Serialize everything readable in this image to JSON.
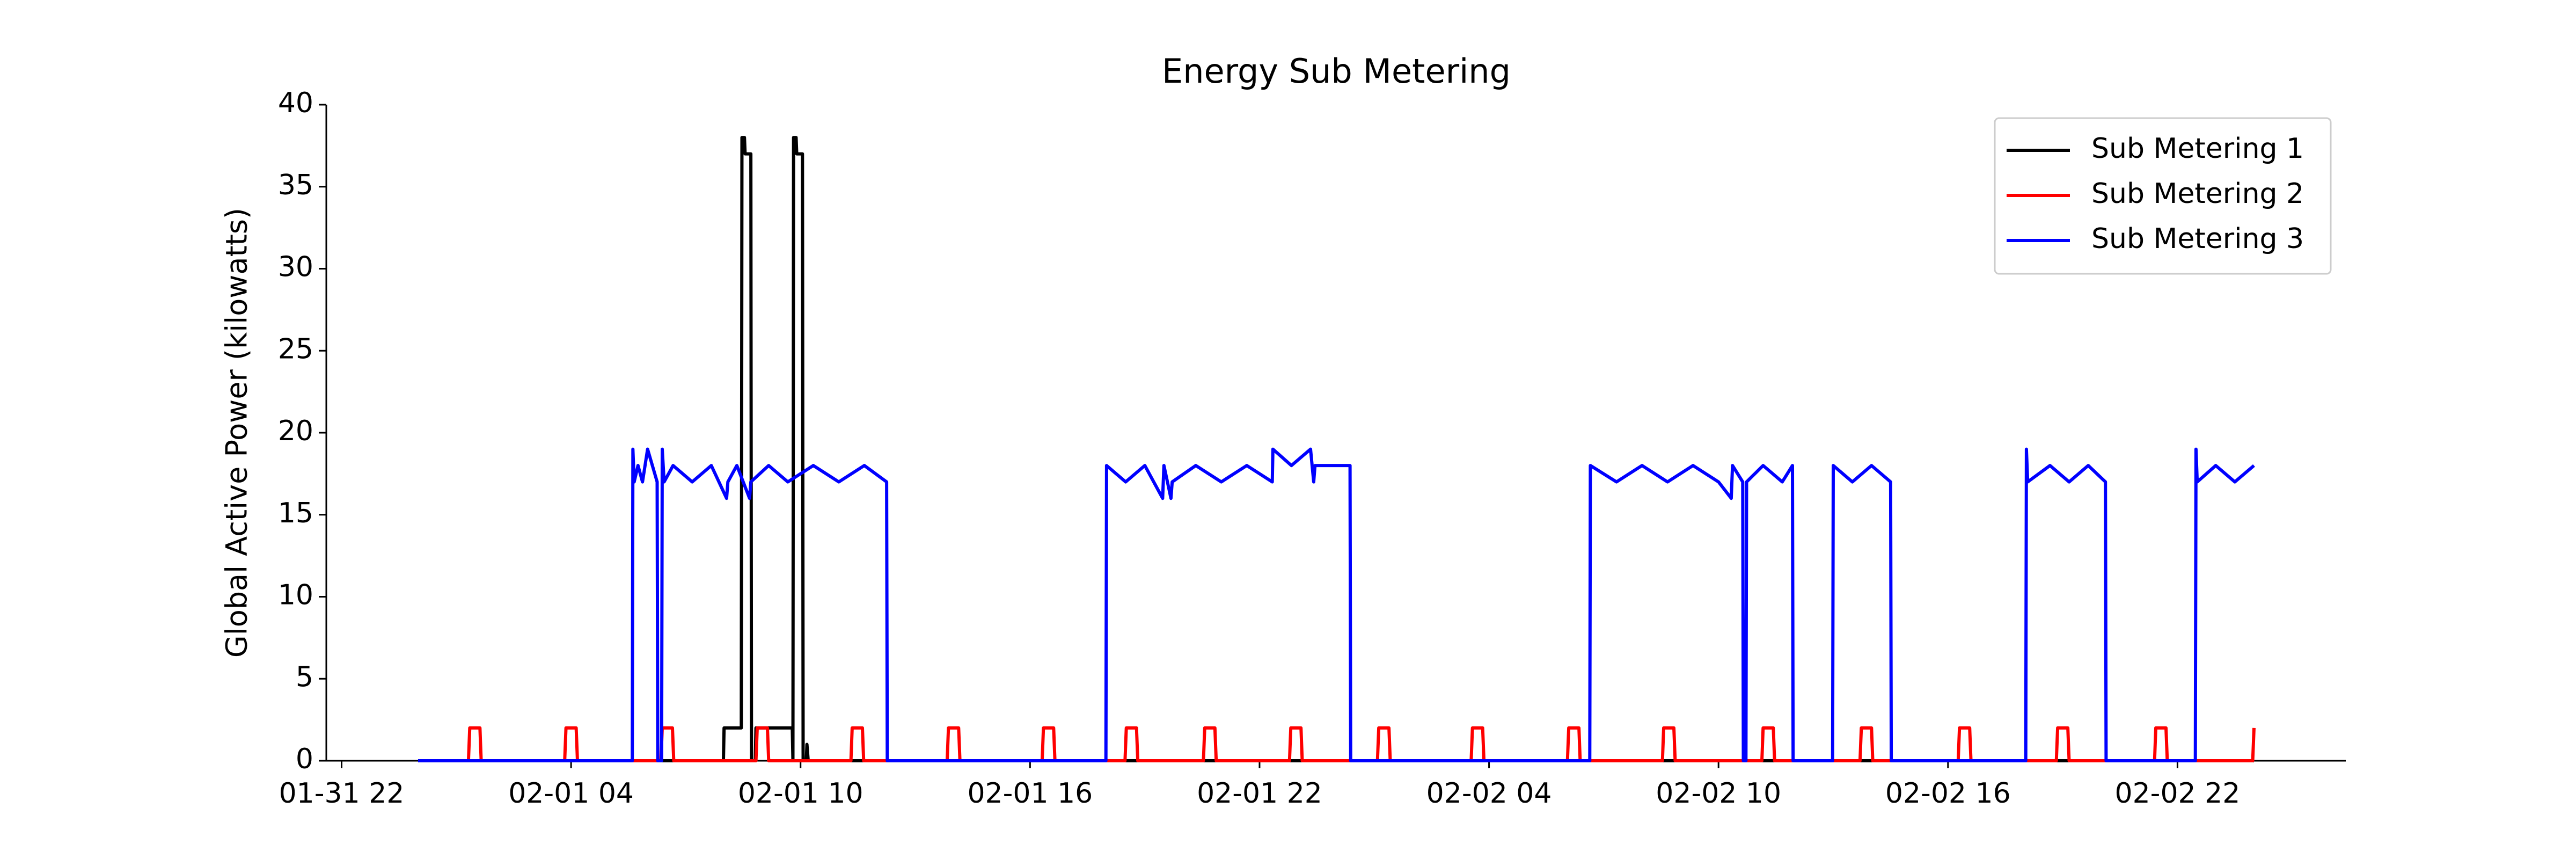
{
  "chart_data": {
    "type": "line",
    "title": "Energy Sub Metering",
    "y_label": "Global Active Power (kilowatts)",
    "xlim": [
      "01-31 21:36",
      "02-03 02:24"
    ],
    "xticks": [
      "01-31 22",
      "02-01 04",
      "02-01 10",
      "02-01 16",
      "02-01 22",
      "02-02 04",
      "02-02 10",
      "02-02 16",
      "02-02 22"
    ],
    "ylim": [
      0,
      40
    ],
    "yticks": [
      0,
      5,
      10,
      15,
      20,
      25,
      30,
      35,
      40
    ],
    "grid": false,
    "legend": "upper right",
    "series": [
      {
        "name": "Sub Metering 1",
        "color": "#000000",
        "x": [
          "02-01 00:00",
          "02-01 07:59",
          "02-01 08:00",
          "02-01 08:27",
          "02-01 08:28",
          "02-01 08:32",
          "02-01 08:33",
          "02-01 08:42",
          "02-01 08:43",
          "02-01 08:49",
          "02-01 08:50",
          "02-01 09:47",
          "02-01 09:48",
          "02-01 09:49",
          "02-01 09:53",
          "02-01 09:54",
          "02-01 10:03",
          "02-01 10:04",
          "02-01 10:09",
          "02-01 10:10",
          "02-01 10:12",
          "02-03 00:00"
        ],
        "values": [
          0,
          0,
          2,
          2,
          38,
          38,
          37,
          37,
          0,
          0,
          2,
          2,
          0,
          38,
          38,
          37,
          37,
          0,
          0,
          1,
          0,
          0
        ]
      },
      {
        "name": "Sub Metering 2",
        "color": "#ff0000",
        "x": [
          "02-01 00:00",
          "02-01 01:19",
          "02-01 01:21",
          "02-01 01:37",
          "02-01 01:39",
          "02-01 03:50",
          "02-01 03:52",
          "02-01 04:08",
          "02-01 04:10",
          "02-01 06:21",
          "02-01 06:23",
          "02-01 06:39",
          "02-01 06:41",
          "02-01 08:50",
          "02-01 08:52",
          "02-01 09:08",
          "02-01 09:10",
          "02-01 11:19",
          "02-01 11:21",
          "02-01 11:37",
          "02-01 11:39",
          "02-01 13:50",
          "02-01 13:52",
          "02-01 14:08",
          "02-01 14:10",
          "02-01 16:19",
          "02-01 16:21",
          "02-01 16:37",
          "02-01 16:39",
          "02-01 18:29",
          "02-01 18:31",
          "02-01 18:47",
          "02-01 18:49",
          "02-01 20:32",
          "02-01 20:34",
          "02-01 20:50",
          "02-01 20:52",
          "02-01 22:47",
          "02-01 22:49",
          "02-01 23:05",
          "02-01 23:07",
          "02-02 01:05",
          "02-02 01:07",
          "02-02 01:23",
          "02-02 01:25",
          "02-02 03:32",
          "02-02 03:34",
          "02-02 03:50",
          "02-02 03:52",
          "02-02 06:03",
          "02-02 06:05",
          "02-02 06:21",
          "02-02 06:23",
          "02-02 08:32",
          "02-02 08:34",
          "02-02 08:50",
          "02-02 08:52",
          "02-02 11:08",
          "02-02 11:10",
          "02-02 11:26",
          "02-02 11:28",
          "02-02 13:42",
          "02-02 13:44",
          "02-02 14:00",
          "02-02 14:02",
          "02-02 16:16",
          "02-02 16:18",
          "02-02 16:34",
          "02-02 16:36",
          "02-02 18:50",
          "02-02 18:52",
          "02-02 19:08",
          "02-02 19:10",
          "02-02 21:24",
          "02-02 21:26",
          "02-02 21:42",
          "02-02 21:44",
          "02-02 23:58",
          "02-03 00:00"
        ],
        "values": [
          0,
          0,
          2,
          2,
          0,
          0,
          2,
          2,
          0,
          0,
          2,
          2,
          0,
          0,
          2,
          2,
          0,
          0,
          2,
          2,
          0,
          0,
          2,
          2,
          0,
          0,
          2,
          2,
          0,
          0,
          2,
          2,
          0,
          0,
          2,
          2,
          0,
          0,
          2,
          2,
          0,
          0,
          2,
          2,
          0,
          0,
          2,
          2,
          0,
          0,
          2,
          2,
          0,
          0,
          2,
          2,
          0,
          0,
          2,
          2,
          0,
          0,
          2,
          2,
          0,
          0,
          2,
          2,
          0,
          0,
          2,
          2,
          0,
          0,
          2,
          2,
          0,
          0,
          2
        ]
      },
      {
        "name": "Sub Metering 3",
        "color": "#0000ff",
        "x": [
          "02-01 00:00",
          "02-01 05:36",
          "02-01 05:37",
          "02-01 05:39",
          "02-01 05:45",
          "02-01 05:52",
          "02-01 06:00",
          "02-01 06:15",
          "02-01 06:16",
          "02-01 06:22",
          "02-01 06:23",
          "02-01 06:26",
          "02-01 06:40",
          "02-01 07:10",
          "02-01 07:40",
          "02-01 08:04",
          "02-01 08:06",
          "02-01 08:20",
          "02-01 08:40",
          "02-01 08:42",
          "02-01 09:10",
          "02-01 09:40",
          "02-01 10:20",
          "02-01 11:00",
          "02-01 11:40",
          "02-01 12:15",
          "02-01 12:16",
          "02-01 17:59",
          "02-01 18:00",
          "02-01 18:30",
          "02-01 19:00",
          "02-01 19:28",
          "02-01 19:30",
          "02-01 19:41",
          "02-01 19:43",
          "02-01 20:20",
          "02-01 21:00",
          "02-01 21:40",
          "02-01 22:20",
          "02-01 22:21",
          "02-01 22:50",
          "02-01 23:20",
          "02-01 23:25",
          "02-01 23:27",
          "02-02 00:22",
          "02-02 00:23",
          "02-02 06:38",
          "02-02 06:39",
          "02-02 07:20",
          "02-02 08:00",
          "02-02 08:40",
          "02-02 09:20",
          "02-02 10:00",
          "02-02 10:20",
          "02-02 10:22",
          "02-02 10:38",
          "02-02 10:39",
          "02-02 10:43",
          "02-02 10:44",
          "02-02 11:10",
          "02-02 11:40",
          "02-02 11:56",
          "02-02 11:57",
          "02-02 12:59",
          "02-02 13:00",
          "02-02 13:30",
          "02-02 14:00",
          "02-02 14:30",
          "02-02 14:31",
          "02-02 18:02",
          "02-02 18:03",
          "02-02 18:05",
          "02-02 18:40",
          "02-02 19:10",
          "02-02 19:40",
          "02-02 20:07",
          "02-02 20:08",
          "02-02 22:28",
          "02-02 22:29",
          "02-02 22:31",
          "02-02 23:00",
          "02-02 23:30",
          "02-03 00:00"
        ],
        "values": [
          0,
          0,
          19,
          17,
          18,
          17,
          19,
          17,
          0,
          0,
          19,
          17,
          18,
          17,
          18,
          16,
          17,
          18,
          16,
          17,
          18,
          17,
          18,
          17,
          18,
          17,
          0,
          0,
          18,
          17,
          18,
          16,
          18,
          16,
          17,
          18,
          17,
          18,
          17,
          19,
          18,
          19,
          17,
          18,
          18,
          0,
          0,
          18,
          17,
          18,
          17,
          18,
          17,
          16,
          18,
          17,
          0,
          0,
          17,
          18,
          17,
          18,
          0,
          0,
          18,
          17,
          18,
          17,
          0,
          0,
          19,
          17,
          18,
          17,
          18,
          17,
          0,
          0,
          19,
          17,
          18,
          17,
          18
        ]
      }
    ]
  }
}
